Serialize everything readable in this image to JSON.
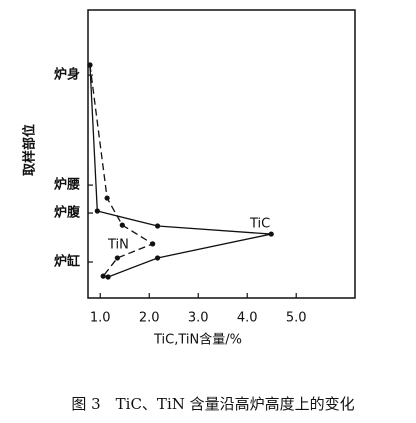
{
  "chart_data": {
    "type": "line",
    "caption": "图 3　TiC、TiN 含量沿高炉高度上的变化",
    "xlabel": "TiC,TiN含量/%",
    "ylabel": "取样部位",
    "xlim": [
      0.75,
      6.2
    ],
    "xticks": [
      {
        "value": 1,
        "label": "1.0"
      },
      {
        "value": 2,
        "label": "2.0"
      },
      {
        "value": 3,
        "label": "3.0"
      },
      {
        "value": 4,
        "label": "4.0"
      },
      {
        "value": 5,
        "label": "5.0"
      }
    ],
    "ylim": [
      0,
      100
    ],
    "yticks": [
      {
        "value": 77.4,
        "label": "炉身"
      },
      {
        "value": 39.2,
        "label": "炉腰"
      },
      {
        "value": 29.5,
        "label": "炉腹"
      },
      {
        "value": 12.5,
        "label": "炉缸"
      }
    ],
    "series": [
      {
        "name": "TiC",
        "color": "#111111",
        "linestyle": "solid",
        "x": [
          0.79,
          0.94,
          2.17,
          4.49,
          2.17,
          1.16
        ],
        "values": [
          80.9,
          30.2,
          25.0,
          22.2,
          13.9,
          7.3
        ]
      },
      {
        "name": "TiN",
        "color": "#111111",
        "linestyle": "dashed",
        "x": [
          0.79,
          1.14,
          1.45,
          2.07,
          1.35,
          1.06
        ],
        "values": [
          80.9,
          34.7,
          25.3,
          18.8,
          13.9,
          7.6
        ]
      }
    ]
  }
}
